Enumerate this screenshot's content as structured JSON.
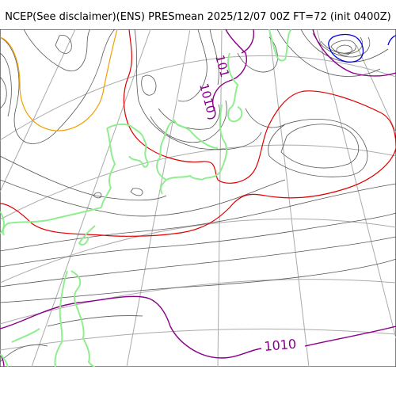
{
  "title": "NCEP(See disclaimer)(ENS) PRESmean 2025/12/07 00Z FT=72 (init 0400Z)",
  "contour_labels": {
    "upper": "1010",
    "upper_partial": "101",
    "lower": "1010"
  },
  "colors": {
    "isobar_thin": "#555555",
    "isobar_1010": "#8b008b",
    "isobar_1020": "#e00000",
    "isobar_low": "#0000dd",
    "isobar_orange": "#f0a000",
    "coastline": "#90ee90",
    "graticule": "#aaaaaa"
  }
}
